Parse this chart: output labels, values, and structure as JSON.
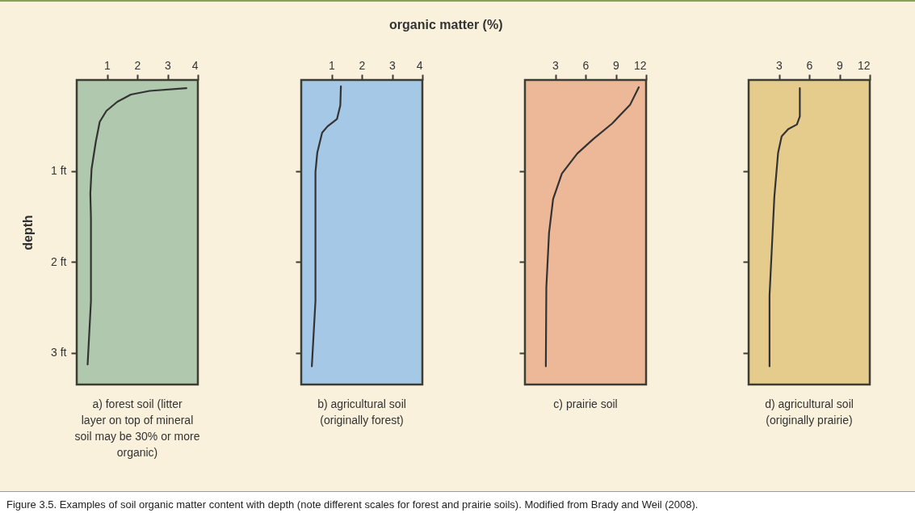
{
  "chart_data": [
    {
      "type": "line",
      "title": "a) forest soil (litter layer on top of mineral soil may be 30% or more organic)",
      "ylabel": "depth",
      "annotations": [
        "organic matter (%)",
        "Figure 3.5. Examples of soil organic matter content with depth (note different scales for forest and prairie soils). Modified from Brady and Weil (2008)."
      ],
      "xlim": [
        0,
        4
      ],
      "xticks": [
        1,
        2,
        3,
        4
      ],
      "ylim": [
        3.35,
        0
      ],
      "yticks": [
        {
          "value": 1,
          "label": "1 ft"
        },
        {
          "value": 2,
          "label": "2 ft"
        },
        {
          "value": 3,
          "label": "3 ft"
        }
      ],
      "series": [
        {
          "color": "#333333",
          "values": [
            0.09,
            0.12,
            0.16,
            0.24,
            0.34,
            0.46,
            0.68,
            0.98,
            1.25,
            1.52,
            2.43,
            3.13
          ],
          "x": [
            3.62,
            2.41,
            1.79,
            1.34,
            0.98,
            0.76,
            0.63,
            0.49,
            0.45,
            0.47,
            0.47,
            0.36
          ]
        }
      ]
    },
    {
      "type": "line",
      "title": "b) agricultural soil (originally forest)",
      "xlim": [
        0,
        4
      ],
      "xticks": [
        1,
        2,
        3,
        4
      ],
      "ylim": [
        3.35,
        0
      ],
      "yticks": [
        {
          "value": 1,
          "label": null
        },
        {
          "value": 2,
          "label": null
        },
        {
          "value": 3,
          "label": null
        }
      ],
      "tick_labels": "x",
      "series": [
        {
          "color": "#333333",
          "values": [
            0.07,
            0.28,
            0.43,
            0.51,
            0.58,
            0.8,
            1.01,
            1.52,
            2.43,
            3.15
          ],
          "x": [
            1.31,
            1.29,
            1.18,
            0.87,
            0.69,
            0.53,
            0.47,
            0.47,
            0.47,
            0.35
          ]
        }
      ]
    },
    {
      "type": "line",
      "title": "c) prairie soil",
      "xlim": [
        0,
        12
      ],
      "xticks": [
        3,
        6,
        9,
        12
      ],
      "ylim": [
        3.35,
        0
      ],
      "yticks": [
        {
          "value": 1,
          "label": null
        },
        {
          "value": 2,
          "label": null
        },
        {
          "value": 3,
          "label": null
        }
      ],
      "tick_labels": "x",
      "series": [
        {
          "color": "#333333",
          "values": [
            0.08,
            0.27,
            0.48,
            0.65,
            0.81,
            1.03,
            1.31,
            1.68,
            2.28,
            3.15
          ],
          "x": [
            11.28,
            10.43,
            8.63,
            6.77,
            5.18,
            3.66,
            2.79,
            2.39,
            2.12,
            2.07
          ]
        }
      ]
    },
    {
      "type": "line",
      "title": "d) agricultural soil (originally prairie)",
      "xlim": [
        0,
        12
      ],
      "xticks": [
        3,
        6,
        9,
        12
      ],
      "ylim": [
        3.35,
        0
      ],
      "yticks": [
        {
          "value": 1,
          "label": null
        },
        {
          "value": 2,
          "label": null
        },
        {
          "value": 3,
          "label": null
        }
      ],
      "tick_labels": "x",
      "series": [
        {
          "color": "#333333",
          "values": [
            0.09,
            0.4,
            0.49,
            0.54,
            0.62,
            0.8,
            1.28,
            2.37,
            3.15
          ],
          "x": [
            5.07,
            5.07,
            4.78,
            3.93,
            3.27,
            2.92,
            2.55,
            2.07,
            2.07
          ]
        }
      ]
    }
  ]
}
